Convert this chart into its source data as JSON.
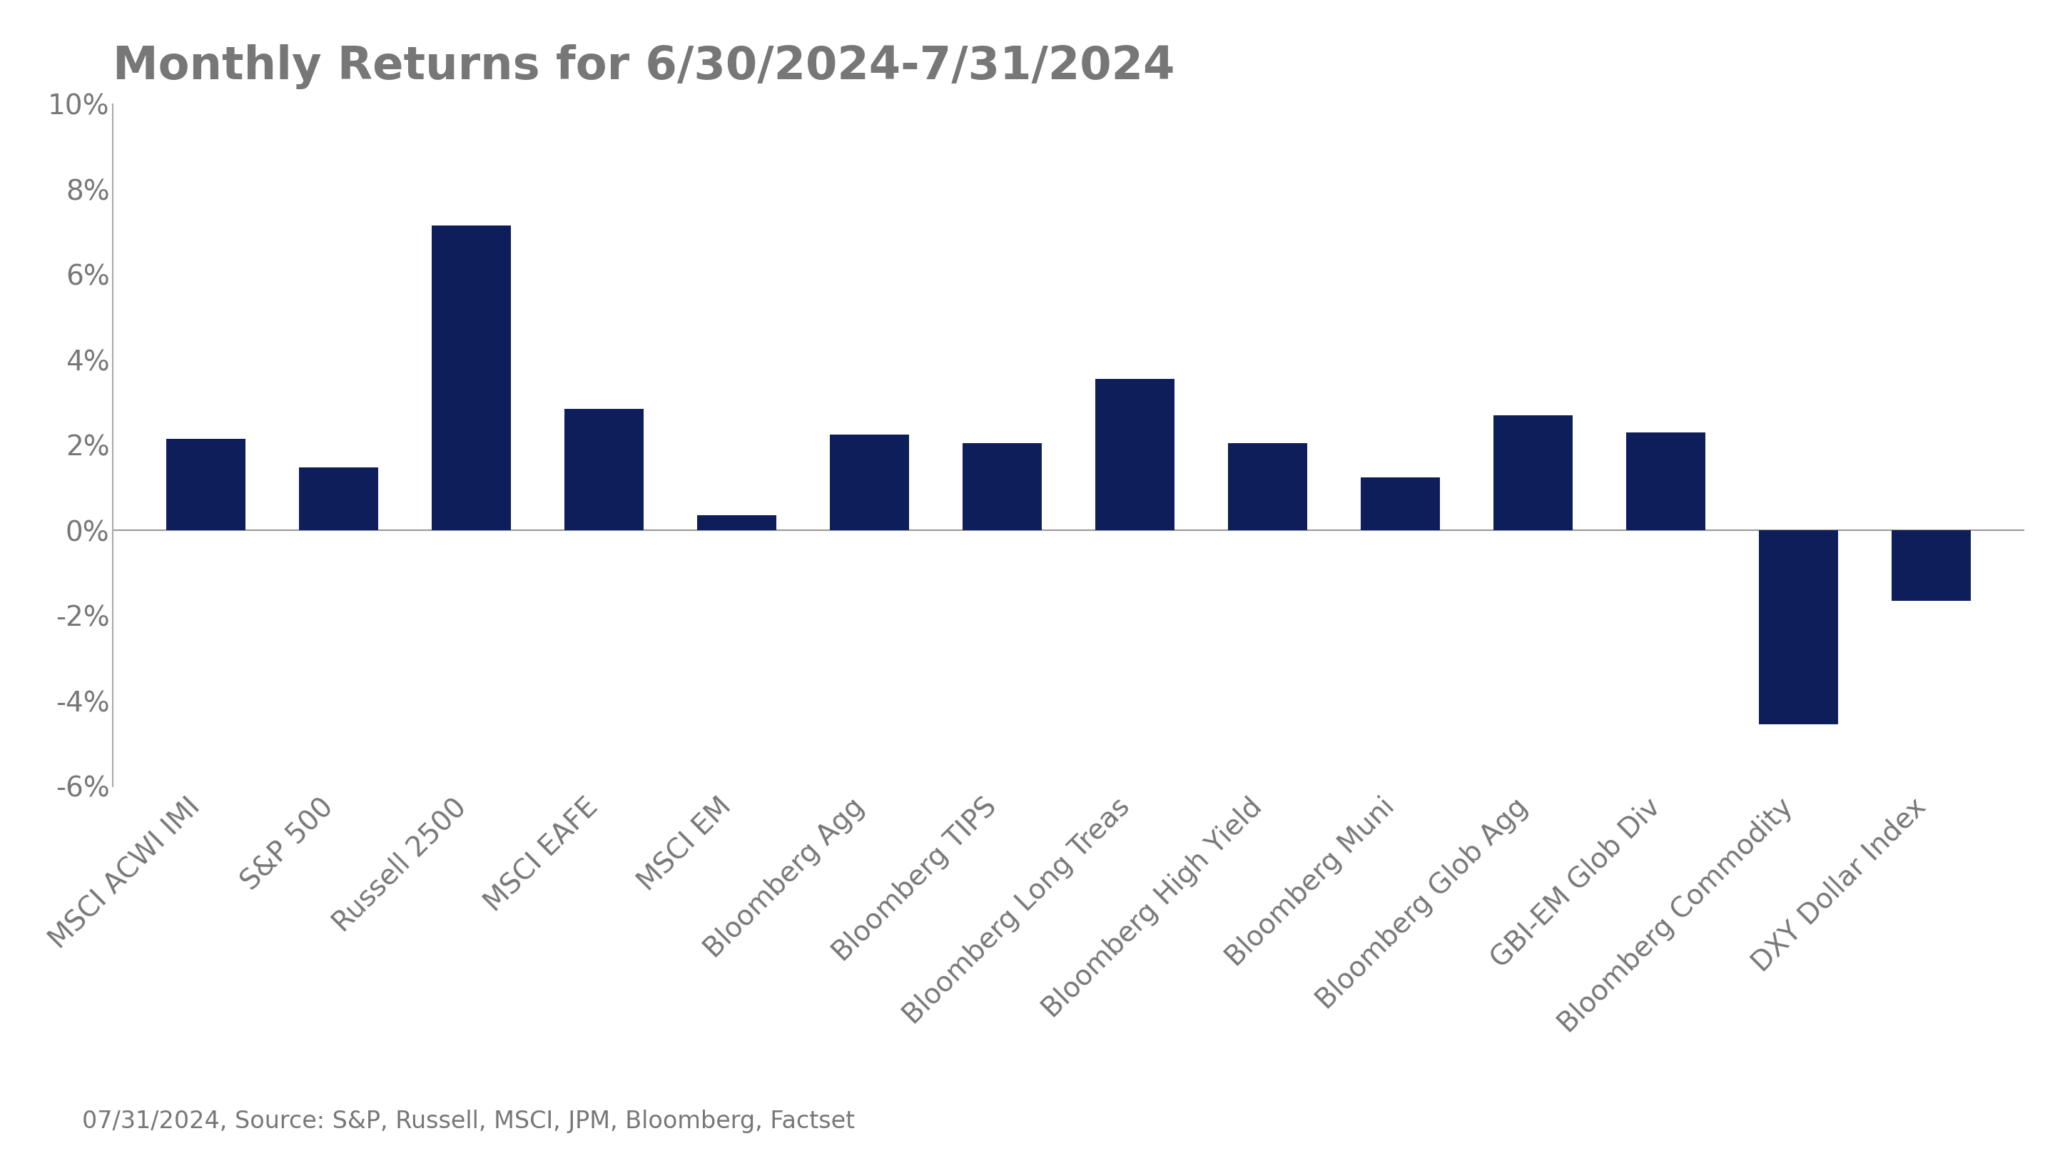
{
  "title": "Monthly Returns for 6/30/2024-7/31/2024",
  "categories": [
    "MSCI ACWI IMI",
    "S&P 500",
    "Russell 2500",
    "MSCI EAFE",
    "MSCI EM",
    "Bloomberg Agg",
    "Bloomberg TIPS",
    "Bloomberg Long Treas",
    "Bloomberg High Yield",
    "Bloomberg Muni",
    "Bloomberg Glob Agg",
    "GBI-EM Glob Div",
    "Bloomberg Commodity",
    "DXY Dollar Index"
  ],
  "values": [
    2.15,
    1.48,
    7.15,
    2.85,
    0.35,
    2.25,
    2.05,
    3.55,
    2.05,
    1.25,
    2.7,
    2.3,
    -4.55,
    -1.65
  ],
  "bar_color": "#0d1e5a",
  "background_color": "#ffffff",
  "ylim_min": -6,
  "ylim_max": 10,
  "ytick_step": 2,
  "footnote": "07/31/2024, Source: S&P, Russell, MSCI, JPM, Bloomberg, Factset",
  "title_fontsize": 46,
  "tick_fontsize": 28,
  "label_fontsize": 28,
  "footnote_fontsize": 24,
  "title_color": "#777777",
  "tick_color": "#777777",
  "footnote_color": "#777777",
  "spine_color": "#aaaaaa",
  "zeroline_color": "#999999"
}
